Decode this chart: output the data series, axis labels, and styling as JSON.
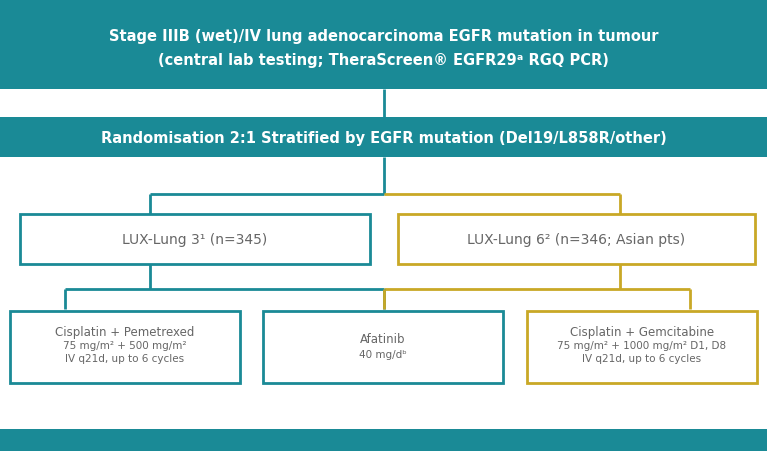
{
  "bg_color": "#ffffff",
  "teal_color": "#1a8a96",
  "gold_color": "#c9a826",
  "text_white": "#ffffff",
  "text_dark": "#666666",
  "top_text1": "Stage IIIB (wet)/IV lung adenocarcinoma EGFR mutation in tumour",
  "top_text2": "(central lab testing; TheraScreen® EGFR29ᵃ RGQ PCR)",
  "mid_text": "Randomisation 2:1 Stratified by EGFR mutation (Del19/L858R/other)",
  "lux3_text": "LUX-Lung 3¹ (n=345)",
  "lux6_text": "LUX-Lung 6² (n=346; Asian pts)",
  "box1_line1": "Cisplatin + Pemetrexed",
  "box1_line2": "75 mg/m² + 500 mg/m²",
  "box1_line3": "IV q21d, up to 6 cycles",
  "box2_line1": "Afatinib",
  "box2_line2": "40 mg/dᵇ",
  "box3_line1": "Cisplatin + Gemcitabine",
  "box3_line2": "75 mg/m² + 1000 mg/m² D1, D8",
  "box3_line3": "IV q21d, up to 6 cycles",
  "lw": 2.0
}
